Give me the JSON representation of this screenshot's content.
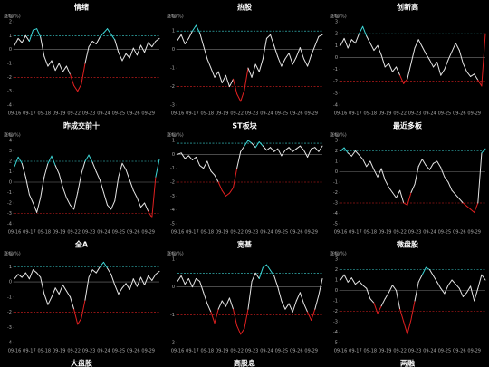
{
  "chart_data": [
    {
      "type": "line",
      "title": "情绪",
      "y_label": "涨幅(%)",
      "color": "#e6e6e6",
      "upper": 1,
      "lower": -2,
      "upper_color": "#3dd6d6",
      "lower_color": "#e02020",
      "ylim": [
        -4,
        2
      ],
      "yticks": [
        2,
        1,
        0,
        -1,
        -2,
        -3,
        -4
      ],
      "categories": [
        "09-16",
        null,
        null,
        null,
        "09-17",
        null,
        null,
        null,
        "09-18",
        null,
        null,
        null,
        "09-19",
        null,
        null,
        null,
        "09-22",
        null,
        null,
        null,
        "09-23",
        null,
        null,
        null,
        "09-24",
        null,
        null,
        null,
        "09-25",
        null,
        null,
        null,
        "09-26",
        null,
        null,
        null,
        "09-29",
        null,
        null,
        null
      ],
      "values": [
        0.3,
        0.8,
        0.5,
        1.0,
        0.6,
        1.4,
        1.5,
        0.9,
        -0.5,
        -1.2,
        -0.8,
        -1.5,
        -1.0,
        -1.6,
        -1.2,
        -1.8,
        -2.6,
        -3.0,
        -2.5,
        -1.0,
        0.2,
        0.6,
        0.4,
        0.9,
        1.2,
        1.5,
        1.1,
        0.7,
        -0.2,
        -0.8,
        -0.3,
        -0.6,
        0.1,
        -0.4,
        0.3,
        -0.2,
        0.5,
        0.2,
        0.6,
        0.8
      ]
    },
    {
      "type": "line",
      "title": "热股",
      "y_label": "涨幅(%)",
      "color": "#e6e6e6",
      "upper": 1,
      "lower": -2,
      "upper_color": "#3dd6d6",
      "lower_color": "#e02020",
      "ylim": [
        -3,
        1.5
      ],
      "yticks": [
        1,
        0,
        -1,
        -2,
        -3
      ],
      "categories": [
        "09-16",
        null,
        null,
        null,
        "09-17",
        null,
        null,
        null,
        "09-18",
        null,
        null,
        null,
        "09-19",
        null,
        null,
        null,
        "09-22",
        null,
        null,
        null,
        "09-23",
        null,
        null,
        null,
        "09-24",
        null,
        null,
        null,
        "09-25",
        null,
        null,
        null,
        "09-26",
        null,
        null,
        null,
        "09-29",
        null,
        null,
        null
      ],
      "values": [
        0.5,
        0.8,
        0.3,
        0.6,
        1.0,
        1.3,
        0.9,
        0.2,
        -0.5,
        -1.0,
        -1.5,
        -1.2,
        -1.8,
        -1.4,
        -2.0,
        -1.6,
        -2.4,
        -2.8,
        -2.2,
        -1.0,
        -1.5,
        -0.8,
        -1.2,
        -0.5,
        0.6,
        0.8,
        0.2,
        -0.4,
        -0.9,
        -0.5,
        -0.2,
        -0.8,
        -0.4,
        0.1,
        -0.5,
        -0.9,
        -0.3,
        0.2,
        0.7,
        0.8
      ]
    },
    {
      "type": "line",
      "title": "创新高",
      "y_label": "涨幅(%)",
      "color": "#e6e6e6",
      "upper": 2,
      "lower": -2,
      "upper_color": "#3dd6d6",
      "lower_color": "#e02020",
      "ylim": [
        -4,
        3
      ],
      "yticks": [
        3,
        2,
        1,
        0,
        -1,
        -2,
        -3,
        -4
      ],
      "categories": [
        "09-16",
        null,
        null,
        null,
        "09-17",
        null,
        null,
        null,
        "09-18",
        null,
        null,
        null,
        "09-19",
        null,
        null,
        null,
        "09-22",
        null,
        null,
        null,
        "09-23",
        null,
        null,
        null,
        "09-24",
        null,
        null,
        null,
        "09-25",
        null,
        null,
        null,
        "09-26",
        null,
        null,
        null,
        "09-29",
        null,
        null,
        null
      ],
      "values": [
        1.0,
        1.6,
        0.8,
        1.5,
        1.2,
        2.0,
        2.6,
        1.8,
        1.2,
        0.6,
        1.0,
        0.2,
        -0.8,
        -0.5,
        -1.2,
        -0.8,
        -1.5,
        -2.2,
        -1.8,
        -0.5,
        0.8,
        1.5,
        0.9,
        0.3,
        -0.2,
        -0.8,
        -0.4,
        -1.5,
        -1.0,
        -0.2,
        0.5,
        1.2,
        0.6,
        -0.5,
        -1.2,
        -1.6,
        -1.4,
        -1.9,
        -2.4,
        2.0
      ]
    },
    {
      "type": "line",
      "title": "昨成交前十",
      "y_label": "涨幅(%)",
      "color": "#e6e6e6",
      "upper": 2,
      "lower": -3,
      "upper_color": "#3dd6d6",
      "lower_color": "#e02020",
      "ylim": [
        -4,
        4
      ],
      "yticks": [
        4,
        3,
        2,
        1,
        0,
        -1,
        -2,
        -3,
        -4
      ],
      "categories": [
        "09-16",
        null,
        null,
        null,
        "09-17",
        null,
        null,
        null,
        "09-18",
        null,
        null,
        null,
        "09-19",
        null,
        null,
        null,
        "09-22",
        null,
        null,
        null,
        "09-23",
        null,
        null,
        null,
        "09-24",
        null,
        null,
        null,
        "09-25",
        null,
        null,
        null,
        "09-26",
        null,
        null,
        null,
        "09-29",
        null,
        null,
        null
      ],
      "values": [
        1.5,
        2.4,
        1.8,
        0.5,
        -1.2,
        -2.0,
        -2.9,
        -1.5,
        0.5,
        1.8,
        2.5,
        1.6,
        0.8,
        -0.5,
        -1.5,
        -2.2,
        -2.6,
        -1.0,
        0.8,
        2.0,
        2.6,
        1.9,
        1.0,
        0.2,
        -1.0,
        -2.2,
        -2.6,
        -1.8,
        0.5,
        1.8,
        1.2,
        0.2,
        -0.8,
        -1.5,
        -2.4,
        -2.0,
        -2.8,
        -3.4,
        0.5,
        2.2
      ]
    },
    {
      "type": "line",
      "title": "ST板块",
      "y_label": "涨幅(%)",
      "color": "#e6e6e6",
      "upper": 0.8,
      "lower": -2,
      "upper_color": "#3dd6d6",
      "lower_color": "#e02020",
      "ylim": [
        -5,
        1
      ],
      "yticks": [
        1,
        0,
        -1,
        -2,
        -3,
        -4,
        -5
      ],
      "categories": [
        "09-16",
        null,
        null,
        null,
        "09-17",
        null,
        null,
        null,
        "09-18",
        null,
        null,
        null,
        "09-19",
        null,
        null,
        null,
        "09-22",
        null,
        null,
        null,
        "09-23",
        null,
        null,
        null,
        "09-24",
        null,
        null,
        null,
        "09-25",
        null,
        null,
        null,
        "09-26",
        null,
        null,
        null,
        "09-29",
        null,
        null,
        null
      ],
      "values": [
        0,
        0.1,
        -0.3,
        -0.1,
        -0.4,
        -0.2,
        -0.8,
        -1.0,
        -0.5,
        -1.2,
        -1.5,
        -2.0,
        -2.6,
        -3.0,
        -2.8,
        -2.4,
        -1.0,
        0.2,
        0.6,
        1.0,
        0.8,
        0.5,
        0.9,
        0.6,
        0.3,
        0.5,
        0.2,
        0.4,
        -0.1,
        0.3,
        0.5,
        0.2,
        0.4,
        0.6,
        0.3,
        -0.2,
        0.4,
        0.5,
        0.2,
        0.6
      ]
    },
    {
      "type": "line",
      "title": "最近多板",
      "y_label": "涨幅(%)",
      "color": "#e6e6e6",
      "upper": 2,
      "lower": -3,
      "upper_color": "#3dd6d6",
      "lower_color": "#e02020",
      "ylim": [
        -5,
        3
      ],
      "yticks": [
        3,
        2,
        1,
        0,
        -1,
        -2,
        -3,
        -4,
        -5
      ],
      "categories": [
        "09-16",
        null,
        null,
        null,
        "09-17",
        null,
        null,
        null,
        "09-18",
        null,
        null,
        null,
        "09-19",
        null,
        null,
        null,
        "09-22",
        null,
        null,
        null,
        "09-23",
        null,
        null,
        null,
        "09-24",
        null,
        null,
        null,
        "09-25",
        null,
        null,
        null,
        "09-26",
        null,
        null,
        null,
        "09-29",
        null,
        null,
        null
      ],
      "values": [
        2.0,
        2.3,
        1.8,
        1.5,
        2.0,
        1.6,
        1.2,
        0.5,
        1.0,
        0.2,
        -0.5,
        0.3,
        -0.8,
        -1.5,
        -2.0,
        -2.5,
        -1.8,
        -3.0,
        -3.2,
        -2.0,
        -1.2,
        0.5,
        1.2,
        0.6,
        0.2,
        0.8,
        1.0,
        0.4,
        -0.5,
        -1.0,
        -1.8,
        -2.2,
        -2.6,
        -3.0,
        -3.3,
        -3.6,
        -3.9,
        -3.0,
        1.8,
        2.2
      ]
    },
    {
      "type": "line",
      "title": "全A",
      "y_label": "涨幅(%)",
      "color": "#e6e6e6",
      "upper": 1,
      "lower": -2,
      "upper_color": "#3dd6d6",
      "lower_color": "#e02020",
      "ylim": [
        -4,
        1.5
      ],
      "yticks": [
        1,
        0,
        -1,
        -2,
        -3,
        -4
      ],
      "categories": [
        "09-16",
        null,
        null,
        null,
        "09-17",
        null,
        null,
        null,
        "09-18",
        null,
        null,
        null,
        "09-19",
        null,
        null,
        null,
        "09-22",
        null,
        null,
        null,
        "09-23",
        null,
        null,
        null,
        "09-24",
        null,
        null,
        null,
        "09-25",
        null,
        null,
        null,
        "09-26",
        null,
        null,
        null,
        "09-29",
        null,
        null,
        null
      ],
      "values": [
        0.2,
        0.5,
        0.3,
        0.6,
        0.2,
        0.8,
        0.6,
        0.3,
        -0.8,
        -1.5,
        -1.0,
        -0.4,
        -0.8,
        -0.2,
        -0.6,
        -1.0,
        -1.8,
        -2.8,
        -2.4,
        -1.2,
        0.3,
        0.8,
        0.6,
        1.0,
        1.3,
        0.9,
        0.5,
        -0.2,
        -0.8,
        -0.4,
        -0.1,
        -0.5,
        0.2,
        -0.3,
        0.3,
        -0.2,
        0.4,
        0.1,
        0.5,
        0.7
      ]
    },
    {
      "type": "line",
      "title": "宽基",
      "y_label": "涨幅(%)",
      "color": "#e6e6e6",
      "upper": 0.5,
      "lower": -1,
      "upper_color": "#3dd6d6",
      "lower_color": "#e02020",
      "ylim": [
        -2,
        1
      ],
      "yticks": [
        1,
        0,
        -1,
        -2
      ],
      "categories": [
        "09-16",
        null,
        null,
        null,
        "09-17",
        null,
        null,
        null,
        "09-18",
        null,
        null,
        null,
        "09-19",
        null,
        null,
        null,
        "09-22",
        null,
        null,
        null,
        "09-23",
        null,
        null,
        null,
        "09-24",
        null,
        null,
        null,
        "09-25",
        null,
        null,
        null,
        "09-26",
        null,
        null,
        null,
        "09-29",
        null,
        null,
        null
      ],
      "values": [
        0.2,
        0.4,
        0.1,
        0.3,
        0.0,
        0.3,
        0.2,
        -0.2,
        -0.6,
        -0.9,
        -1.3,
        -0.8,
        -0.5,
        -0.7,
        -0.4,
        -0.8,
        -1.4,
        -1.7,
        -1.5,
        -0.8,
        0.2,
        0.5,
        0.3,
        0.7,
        0.8,
        0.6,
        0.4,
        0.0,
        -0.5,
        -0.8,
        -0.6,
        -0.9,
        -0.5,
        -0.2,
        -0.6,
        -0.9,
        -1.2,
        -0.8,
        -0.3,
        0.3
      ]
    },
    {
      "type": "line",
      "title": "微盘股",
      "y_label": "涨幅(%)",
      "color": "#e6e6e6",
      "upper": 2,
      "lower": -2,
      "upper_color": "#3dd6d6",
      "lower_color": "#e02020",
      "ylim": [
        -5,
        3
      ],
      "yticks": [
        3,
        2,
        1,
        0,
        -1,
        -2,
        -3,
        -4,
        -5
      ],
      "categories": [
        "09-16",
        null,
        null,
        null,
        "09-17",
        null,
        null,
        null,
        "09-18",
        null,
        null,
        null,
        "09-19",
        null,
        null,
        null,
        "09-22",
        null,
        null,
        null,
        "09-23",
        null,
        null,
        null,
        "09-24",
        null,
        null,
        null,
        "09-25",
        null,
        null,
        null,
        "09-26",
        null,
        null,
        null,
        "09-29",
        null,
        null,
        null
      ],
      "values": [
        1.0,
        1.5,
        0.8,
        1.2,
        0.6,
        0.9,
        0.5,
        0.2,
        -0.8,
        -1.2,
        -2.2,
        -1.5,
        -0.8,
        -0.2,
        0.5,
        0.0,
        -1.8,
        -3.0,
        -4.2,
        -2.8,
        -1.0,
        0.8,
        1.5,
        2.2,
        2.0,
        1.4,
        0.8,
        0.2,
        -0.3,
        0.5,
        1.0,
        0.6,
        0.2,
        -0.6,
        -0.2,
        0.4,
        -1.0,
        0.2,
        1.5,
        1.0
      ]
    }
  ],
  "clipped_titles": [
    "大盘股",
    "高股息",
    "两融"
  ]
}
